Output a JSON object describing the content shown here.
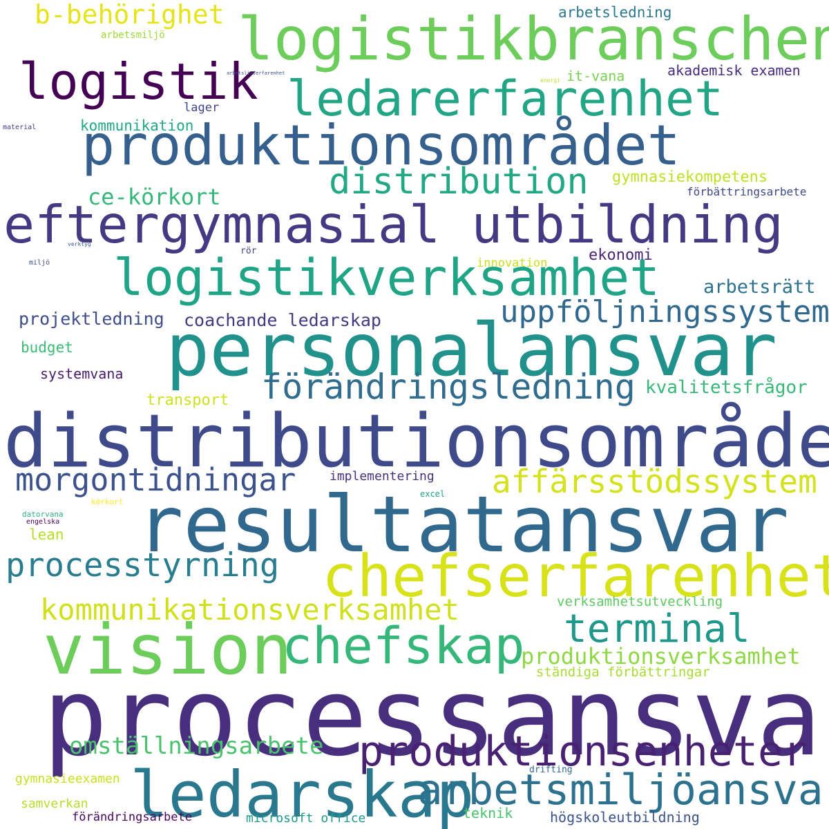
{
  "words": [
    {
      "text": "processansvar",
      "color": "#472f7d"
    },
    {
      "text": "distributionsområde",
      "color": "#3e4a89"
    },
    {
      "text": "resultatansvar",
      "color": "#31688e"
    },
    {
      "text": "personalansvar",
      "color": "#21918c"
    },
    {
      "text": "logistikbranschen",
      "color": "#6ccd5a"
    },
    {
      "text": "eftergymnasial utbildning",
      "color": "#443983"
    },
    {
      "text": "produktionsområdet",
      "color": "#355f8d"
    },
    {
      "text": "vision",
      "color": "#6ccd5a"
    },
    {
      "text": "logistik",
      "color": "#440154"
    },
    {
      "text": "ledarskap",
      "color": "#2a788e"
    },
    {
      "text": "chefserfarenhet",
      "color": "#d8e219"
    },
    {
      "text": "logistikverksamhet",
      "color": "#20a486"
    },
    {
      "text": "ledarerfarenhet",
      "color": "#21a585"
    },
    {
      "text": "chefskap",
      "color": "#35b779"
    },
    {
      "text": "arbetsmiljöansvar",
      "color": "#2c728e"
    },
    {
      "text": "produktionsenheter",
      "color": "#482173"
    },
    {
      "text": "distribution",
      "color": "#22a884"
    },
    {
      "text": "förändringsledning",
      "color": "#2f6c8e"
    },
    {
      "text": "uppföljningssystem",
      "color": "#31688e"
    },
    {
      "text": "affärsstödssystem",
      "color": "#d2e21b"
    },
    {
      "text": "terminal",
      "color": "#1f988b"
    },
    {
      "text": "morgontidningar",
      "color": "#3b528b"
    },
    {
      "text": "processtyrning",
      "color": "#287d8e"
    },
    {
      "text": "kommunikationsverksamhet",
      "color": "#d0e11c"
    },
    {
      "text": "produktionsverksamhet",
      "color": "#8fd744"
    },
    {
      "text": "omställningsarbete",
      "color": "#4ac16d"
    },
    {
      "text": "b-behörighet",
      "color": "#e5e419"
    },
    {
      "text": "ce-körkort",
      "color": "#35b779"
    },
    {
      "text": "coachande ledarskap",
      "color": "#453882"
    },
    {
      "text": "projektledning",
      "color": "#3e4c8a"
    },
    {
      "text": "arbetsrätt",
      "color": "#2c728e"
    },
    {
      "text": "kvalitetsfrågor",
      "color": "#37b878"
    },
    {
      "text": "gymnasiekompetens",
      "color": "#c2df23"
    },
    {
      "text": "kommunikation",
      "color": "#22a884"
    },
    {
      "text": "ständiga förbättringar",
      "color": "#a8db34"
    },
    {
      "text": "verksamhetsutveckling",
      "color": "#5ec962"
    },
    {
      "text": "akademisk examen",
      "color": "#472c7a"
    },
    {
      "text": "arbetsledning",
      "color": "#2a788e"
    },
    {
      "text": "it-vana",
      "color": "#7ad151"
    },
    {
      "text": "ekonomi",
      "color": "#482475"
    },
    {
      "text": "budget",
      "color": "#3bbb75"
    },
    {
      "text": "systemvana",
      "color": "#481b6d"
    },
    {
      "text": "transport",
      "color": "#cde11d"
    },
    {
      "text": "implementering",
      "color": "#46327e"
    },
    {
      "text": "lean",
      "color": "#b5de2b"
    },
    {
      "text": "förbättringsarbete",
      "color": "#3f4788"
    },
    {
      "text": "innovation",
      "color": "#c8e020"
    },
    {
      "text": "lager",
      "color": "#414487"
    },
    {
      "text": "gymnasieexamen",
      "color": "#c8e020"
    },
    {
      "text": "samverkan",
      "color": "#b5de2b"
    },
    {
      "text": "förändringsarbete",
      "color": "#46085c"
    },
    {
      "text": "microsoft office",
      "color": "#1f9a8a"
    },
    {
      "text": "teknik",
      "color": "#4ac16d"
    },
    {
      "text": "högskoleutbildning",
      "color": "#3b528b"
    },
    {
      "text": "arbetsmiljö",
      "color": "#a0da39"
    },
    {
      "text": "drifting",
      "color": "#31688e"
    },
    {
      "text": "rör",
      "color": "#414487"
    },
    {
      "text": "excel",
      "color": "#1fa188"
    },
    {
      "text": "körkort",
      "color": "#fde725"
    },
    {
      "text": "datorvana",
      "color": "#2db27d"
    },
    {
      "text": "engelska",
      "color": "#440154"
    },
    {
      "text": "material",
      "color": "#443a83"
    },
    {
      "text": "miljö",
      "color": "#3e4989"
    },
    {
      "text": "verktyg",
      "color": "#39568c"
    },
    {
      "text": "energi",
      "color": "#c2df23"
    },
    {
      "text": "arbetslivserfarenhet",
      "color": "#3b528b"
    }
  ]
}
